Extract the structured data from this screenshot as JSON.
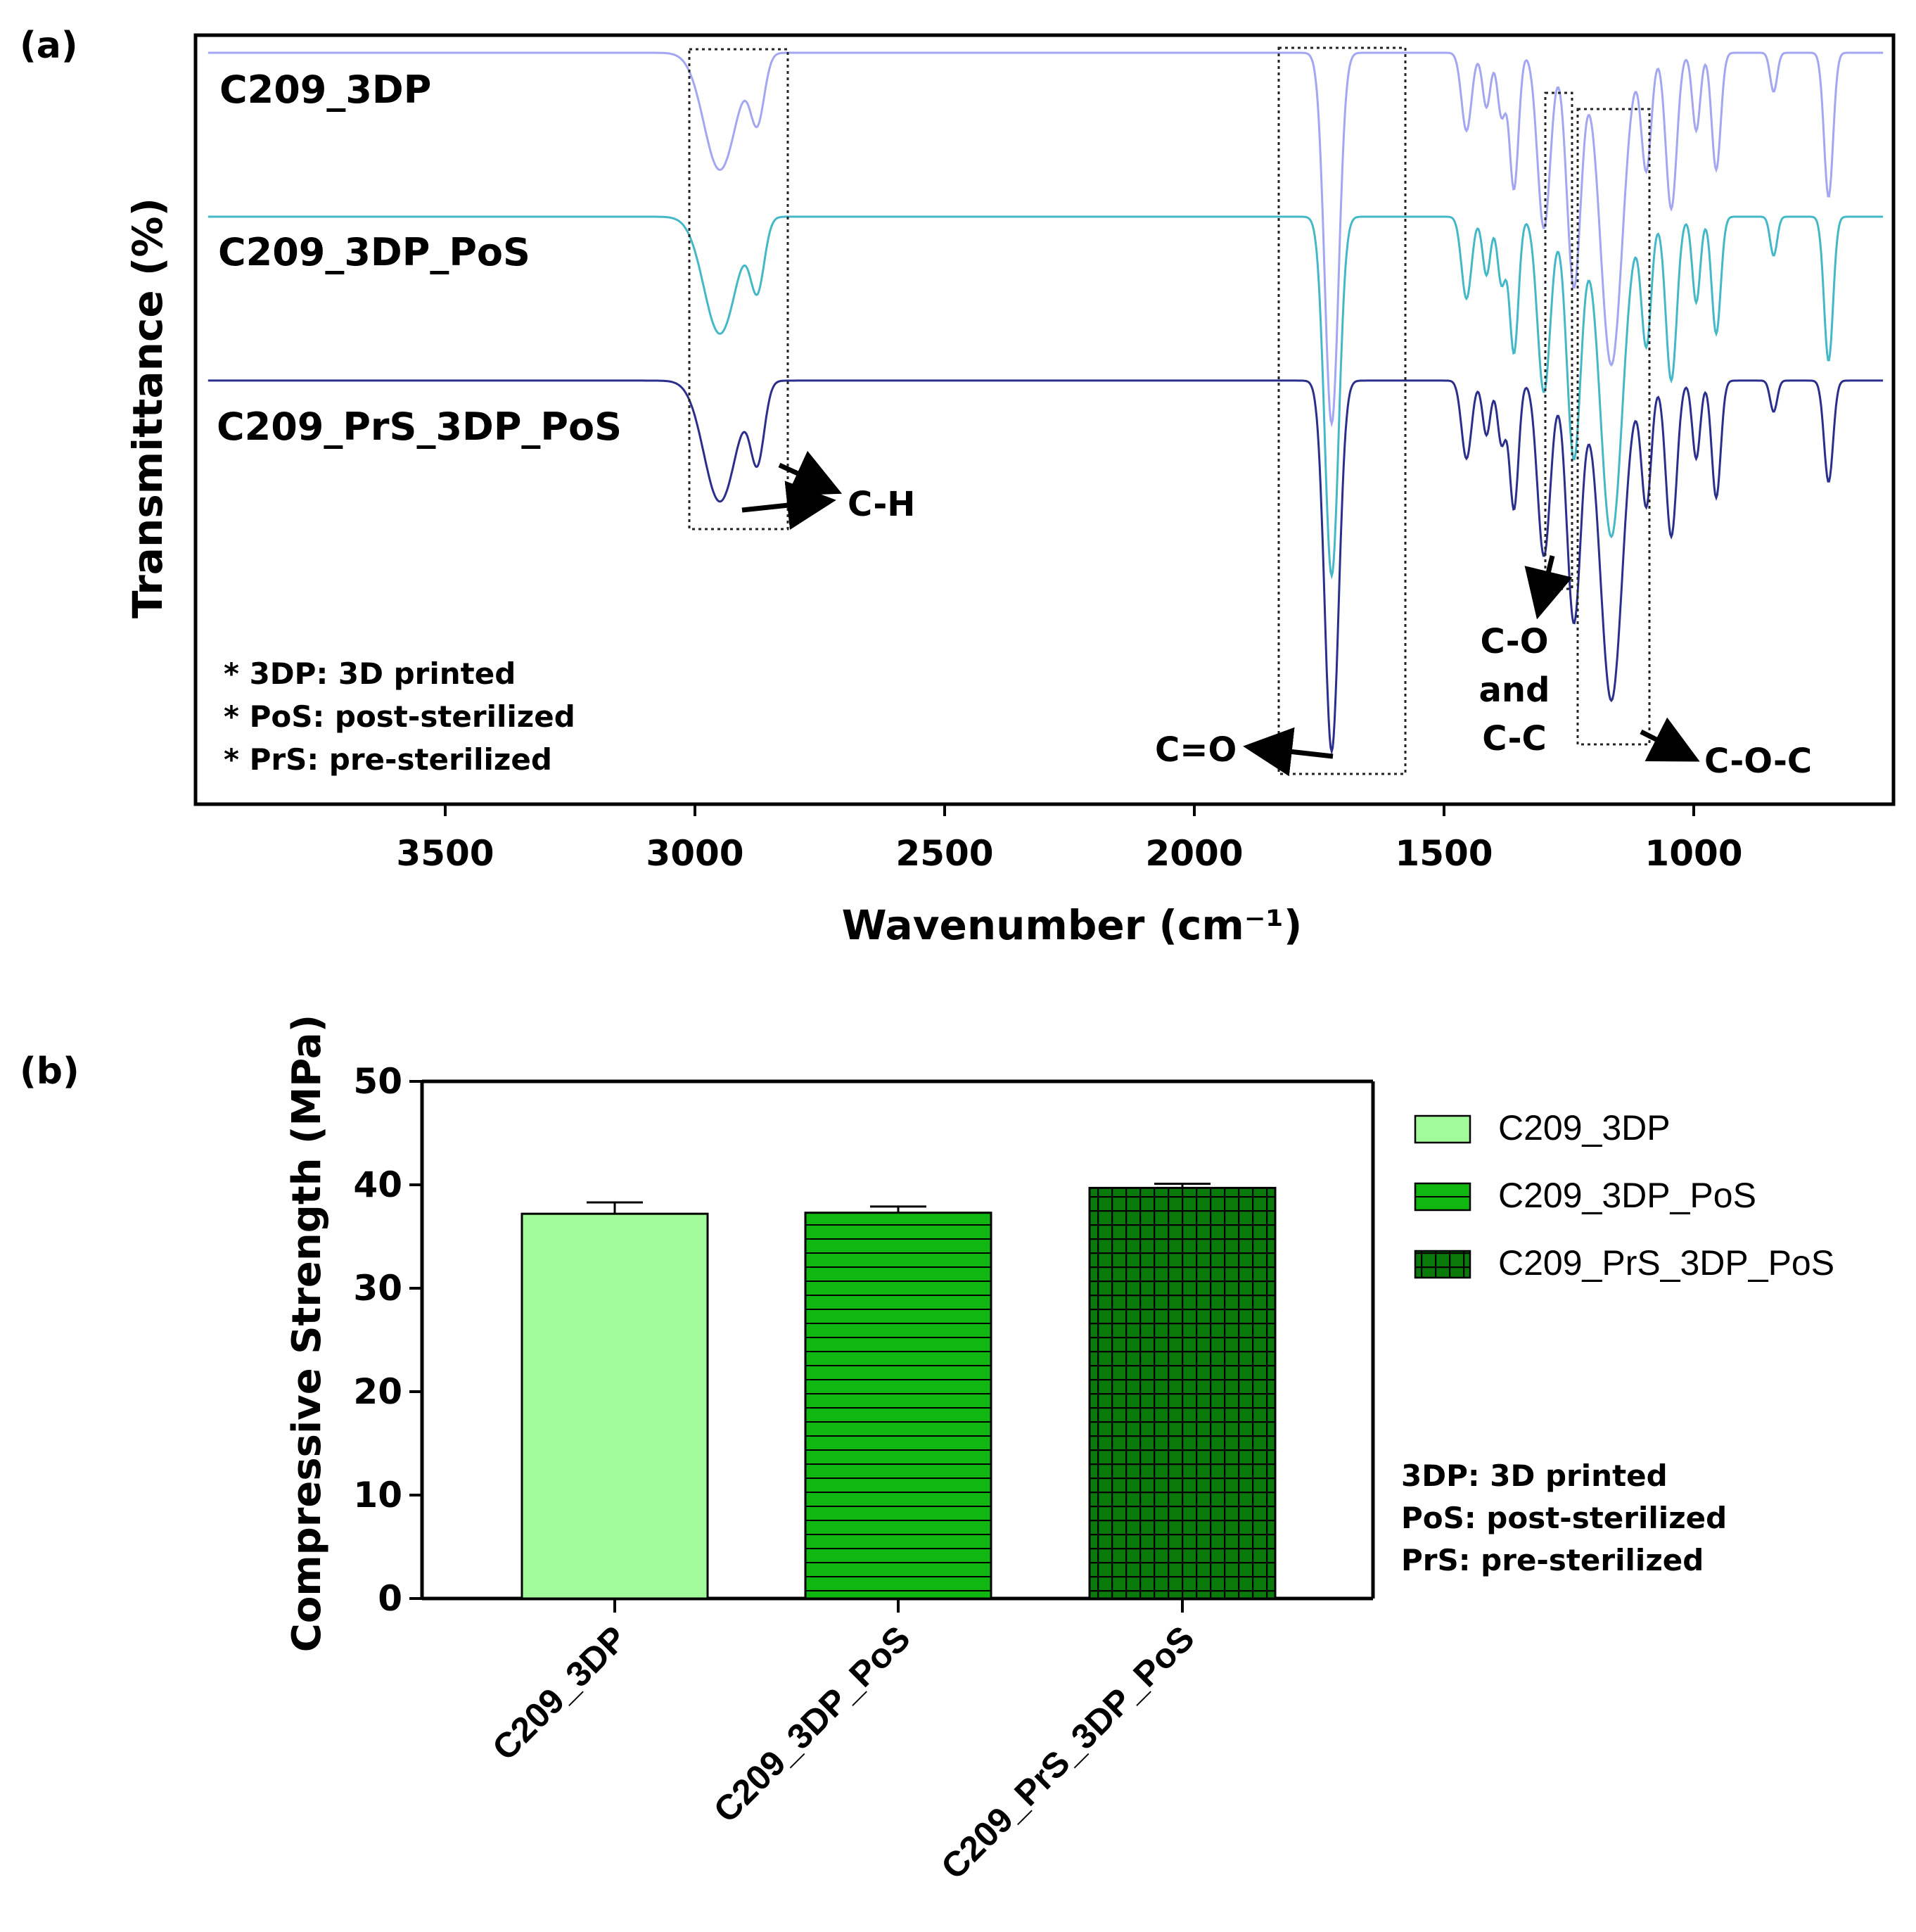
{
  "chart_data": [
    {
      "type": "line",
      "panel_label": "(a)",
      "xlabel": "Wavenumber (cm⁻¹)",
      "ylabel": "Transmittance (%)",
      "xlim": [
        4000,
        600
      ],
      "x_ticks": [
        3500,
        3000,
        2500,
        2000,
        1500,
        1000
      ],
      "series": [
        {
          "name": "C209_3DP",
          "color": "#a3a6f0",
          "baseline": 1.0
        },
        {
          "name": "C209_3DP_PoS",
          "color": "#45b8c8",
          "baseline": 0.58
        },
        {
          "name": "C209_PrS_3DP_PoS",
          "color": "#2b2f8c",
          "baseline": 0.16
        }
      ],
      "peaks": [
        {
          "wn": 2950,
          "width": 32,
          "depth": [
            0.3,
            0.3,
            0.31
          ]
        },
        {
          "wn": 2875,
          "width": 14,
          "depth": [
            0.17,
            0.18,
            0.2
          ]
        },
        {
          "wn": 1725,
          "width": 14,
          "depth": [
            0.95,
            0.92,
            0.95
          ]
        },
        {
          "wn": 1455,
          "width": 10,
          "depth": [
            0.2,
            0.21,
            0.2
          ]
        },
        {
          "wn": 1415,
          "width": 8,
          "depth": [
            0.14,
            0.15,
            0.14
          ]
        },
        {
          "wn": 1385,
          "width": 8,
          "depth": [
            0.16,
            0.17,
            0.16
          ]
        },
        {
          "wn": 1360,
          "width": 9,
          "depth": [
            0.35,
            0.35,
            0.33
          ]
        },
        {
          "wn": 1300,
          "width": 13,
          "depth": [
            0.45,
            0.45,
            0.45
          ]
        },
        {
          "wn": 1240,
          "width": 14,
          "depth": [
            0.6,
            0.62,
            0.62
          ]
        },
        {
          "wn": 1165,
          "width": 22,
          "depth": [
            0.8,
            0.82,
            0.82
          ]
        },
        {
          "wn": 1095,
          "width": 10,
          "depth": [
            0.3,
            0.33,
            0.32
          ]
        },
        {
          "wn": 1045,
          "width": 11,
          "depth": [
            0.4,
            0.42,
            0.4
          ]
        },
        {
          "wn": 995,
          "width": 8,
          "depth": [
            0.2,
            0.22,
            0.2
          ]
        },
        {
          "wn": 955,
          "width": 9,
          "depth": [
            0.3,
            0.3,
            0.3
          ]
        },
        {
          "wn": 840,
          "width": 7,
          "depth": [
            0.1,
            0.1,
            0.08
          ]
        },
        {
          "wn": 730,
          "width": 9,
          "depth": [
            0.37,
            0.37,
            0.26
          ]
        }
      ],
      "annotations": [
        {
          "label": "C-H",
          "wn": 2950
        },
        {
          "label": "C=O",
          "wn": 1725
        },
        {
          "label_lines": [
            "C-O",
            "and",
            "C-C"
          ],
          "wn": 1300
        },
        {
          "label": "C-O-C",
          "wn": 1165
        }
      ],
      "footnotes": [
        "* 3DP: 3D printed",
        "* PoS: post-sterilized",
        "* PrS: pre-sterilized"
      ]
    },
    {
      "type": "bar",
      "panel_label": "(b)",
      "ylabel": "Compressive Strength (MPa)",
      "xlabel": "",
      "ylim": [
        0,
        50
      ],
      "y_ticks": [
        0,
        10,
        20,
        30,
        40,
        50
      ],
      "categories": [
        "C209_3DP",
        "C209_3DP_PoS",
        "C209_PrS_3DP_PoS"
      ],
      "values": [
        37.2,
        37.3,
        39.7
      ],
      "errors": [
        1.1,
        0.6,
        0.4
      ],
      "legend": [
        {
          "name": "C209_3DP",
          "pattern": "solid-light"
        },
        {
          "name": "C209_3DP_PoS",
          "pattern": "horizontal-lines"
        },
        {
          "name": "C209_PrS_3DP_PoS",
          "pattern": "grid"
        }
      ],
      "legend_position": "right",
      "footnotes": [
        "3DP: 3D printed",
        "PoS: post-sterilized",
        "PrS: pre-sterilized"
      ],
      "colors": {
        "light": "#a2fb9b",
        "mid": "#11b711",
        "dark": "#0a7a0a"
      }
    }
  ]
}
